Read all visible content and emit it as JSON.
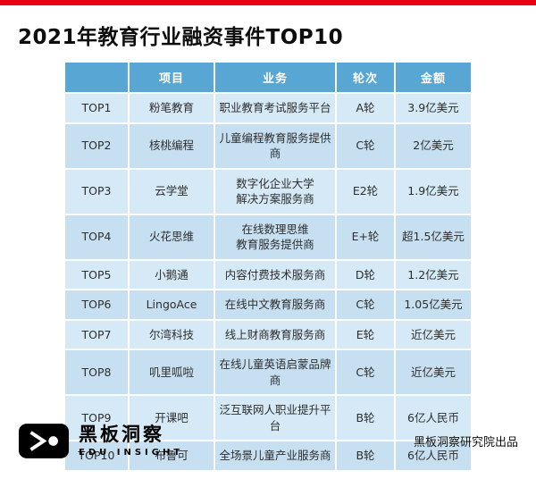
{
  "page": {
    "accent_red": "#e60012",
    "header_blue": "#57a6d3",
    "row_light": "#d5e9f6",
    "row_dark": "#c7e0f1"
  },
  "chart_data": {
    "type": "table",
    "title": "2021年教育行业融资事件TOP10",
    "columns": [
      "",
      "项目",
      "业务",
      "轮次",
      "金额"
    ],
    "rows": [
      {
        "rank": "TOP1",
        "project": "粉笔教育",
        "business": "职业教育考试服务平台",
        "round": "A轮",
        "amount": "3.9亿美元"
      },
      {
        "rank": "TOP2",
        "project": "核桃编程",
        "business": "儿童编程教育服务提供商",
        "round": "C轮",
        "amount": "2亿美元"
      },
      {
        "rank": "TOP3",
        "project": "云学堂",
        "business": "数字化企业大学\n解决方案服务商",
        "round": "E2轮",
        "amount": "1.9亿美元"
      },
      {
        "rank": "TOP4",
        "project": "火花思维",
        "business": "在线数理思维\n教育服务提供商",
        "round": "E+轮",
        "amount": "超1.5亿美元"
      },
      {
        "rank": "TOP5",
        "project": "小鹅通",
        "business": "内容付费技术服务商",
        "round": "D轮",
        "amount": "1.2亿美元"
      },
      {
        "rank": "TOP6",
        "project": "LingoAce",
        "business": "在线中文教育服务商",
        "round": "C轮",
        "amount": "1.05亿美元"
      },
      {
        "rank": "TOP7",
        "project": "尔湾科技",
        "business": "线上财商教育服务商",
        "round": "E轮",
        "amount": "近亿美元"
      },
      {
        "rank": "TOP8",
        "project": "叽里呱啦",
        "business": "在线儿童英语启蒙品牌商",
        "round": "C轮",
        "amount": "近亿美元"
      },
      {
        "rank": "TOP9",
        "project": "开课吧",
        "business": "泛互联网人职业提升平台",
        "round": "B轮",
        "amount": "6亿人民币"
      },
      {
        "rank": "TOP10",
        "project": "布鲁可",
        "business": "全场景儿童产业服务商",
        "round": "B轮",
        "amount": "6亿人民币"
      }
    ]
  },
  "footer": {
    "brand_name": "黑板洞察",
    "brand_sub": "EDU INSIGHT",
    "credit": "黑板洞察研究院出品"
  }
}
